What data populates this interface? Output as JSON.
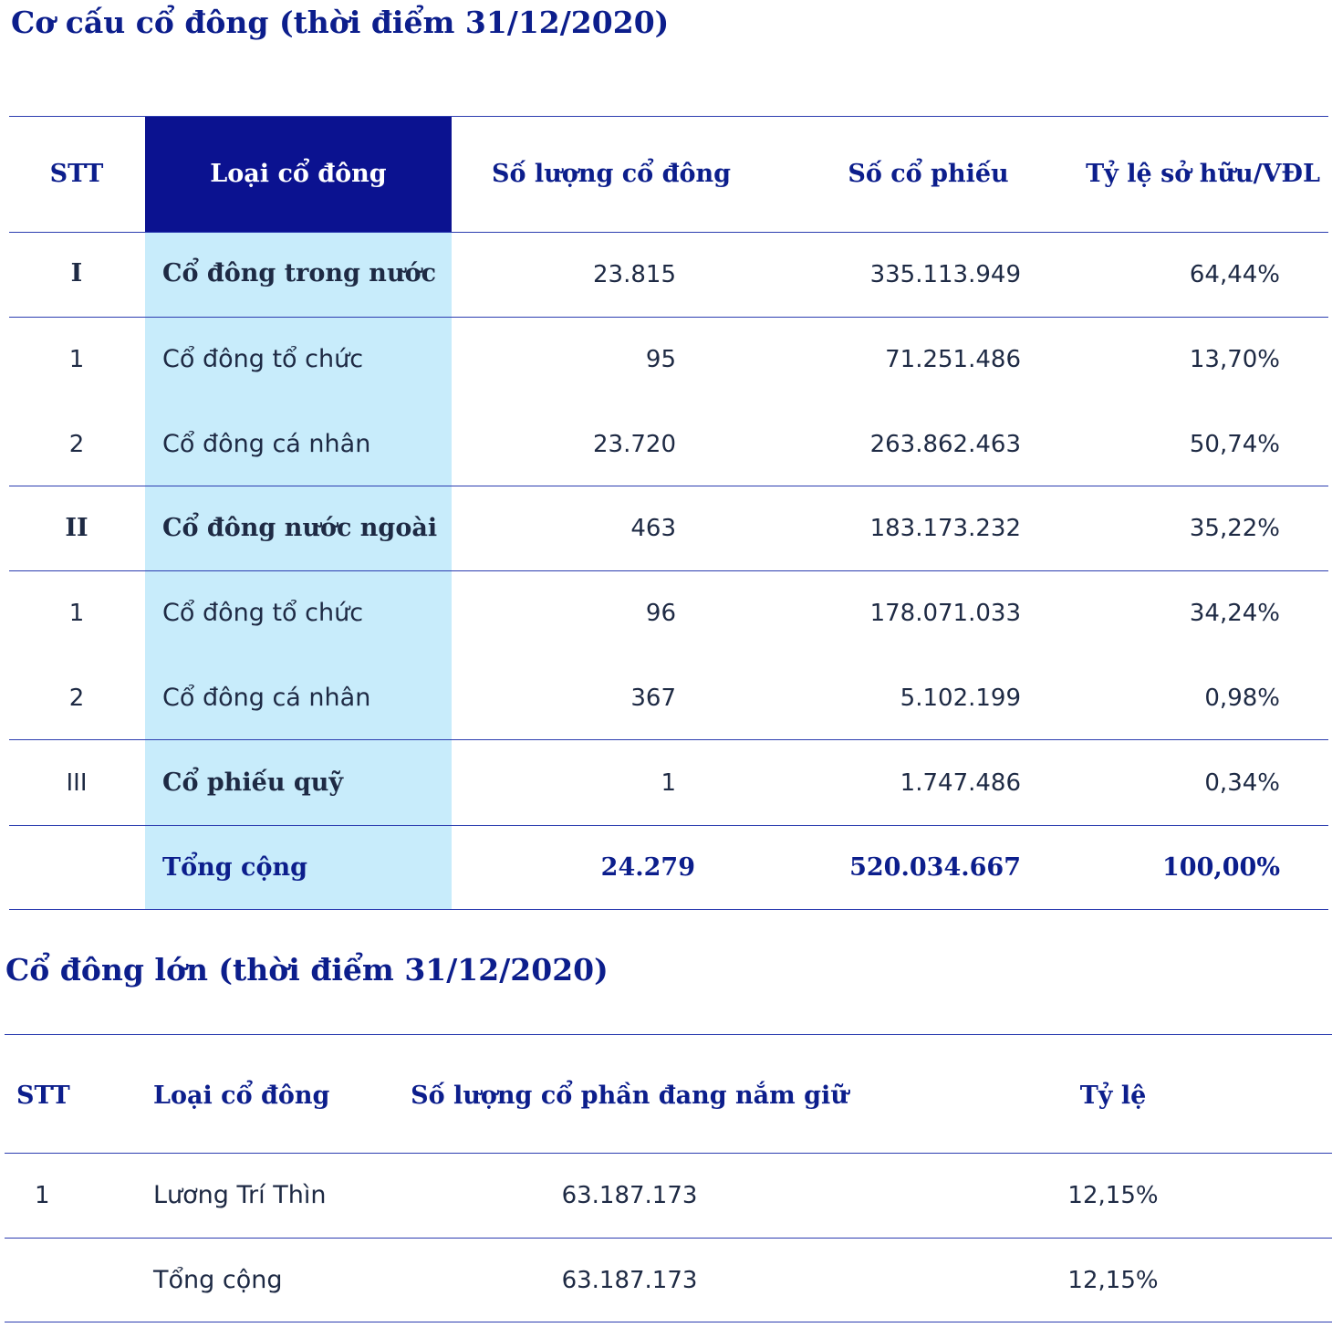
{
  "table1": {
    "title": "Cơ cấu cổ đông (thời điểm 31/12/2020)",
    "headers": [
      "STT",
      "Loại cổ đông",
      "Số lượng cổ đông",
      "Số cổ phiếu",
      "Tỷ lệ sở hữu/VĐL"
    ],
    "rows": [
      {
        "stt": "I",
        "label": "Cổ đông trong nước",
        "holders": "23.815",
        "shares": "335.113.949",
        "ratio": "64,44%",
        "bold": true
      },
      {
        "stt": "1",
        "label": "Cổ đông tổ chức",
        "holders": "95",
        "shares": "71.251.486",
        "ratio": "13,70%",
        "bold": false
      },
      {
        "stt": "2",
        "label": "Cổ đông cá nhân",
        "holders": "23.720",
        "shares": "263.862.463",
        "ratio": "50,74%",
        "bold": false
      },
      {
        "stt": "II",
        "label": "Cổ đông nước ngoài",
        "holders": "463",
        "shares": "183.173.232",
        "ratio": "35,22%",
        "bold": true
      },
      {
        "stt": "1",
        "label": "Cổ đông tổ chức",
        "holders": "96",
        "shares": "178.071.033",
        "ratio": "34,24%",
        "bold": false
      },
      {
        "stt": "2",
        "label": "Cổ đông cá nhân",
        "holders": "367",
        "shares": "5.102.199",
        "ratio": "0,98%",
        "bold": false
      },
      {
        "stt": "III",
        "label": "Cổ phiếu quỹ",
        "holders": "1",
        "shares": "1.747.486",
        "ratio": "0,34%",
        "bold": true
      }
    ],
    "total": {
      "label": "Tổng cộng",
      "holders": "24.279",
      "shares": "520.034.667",
      "ratio": "100,00%"
    }
  },
  "table2": {
    "title": "Cổ đông lớn (thời điểm 31/12/2020)",
    "headers": [
      "STT",
      "Loại cổ đông",
      "Số lượng cổ phần đang nắm giữ",
      "Tỷ lệ"
    ],
    "rows": [
      {
        "stt": "1",
        "name": "Lương Trí Thìn",
        "shares": "63.187.173",
        "ratio": "12,15%"
      }
    ],
    "total": {
      "label": "Tổng cộng",
      "shares": "63.187.173",
      "ratio": "12,15%"
    }
  },
  "colors": {
    "navy": "#0c1e8c",
    "header_fill": "#0b1290",
    "column_fill": "#c8ecfb",
    "rule": "#2c3db0"
  }
}
